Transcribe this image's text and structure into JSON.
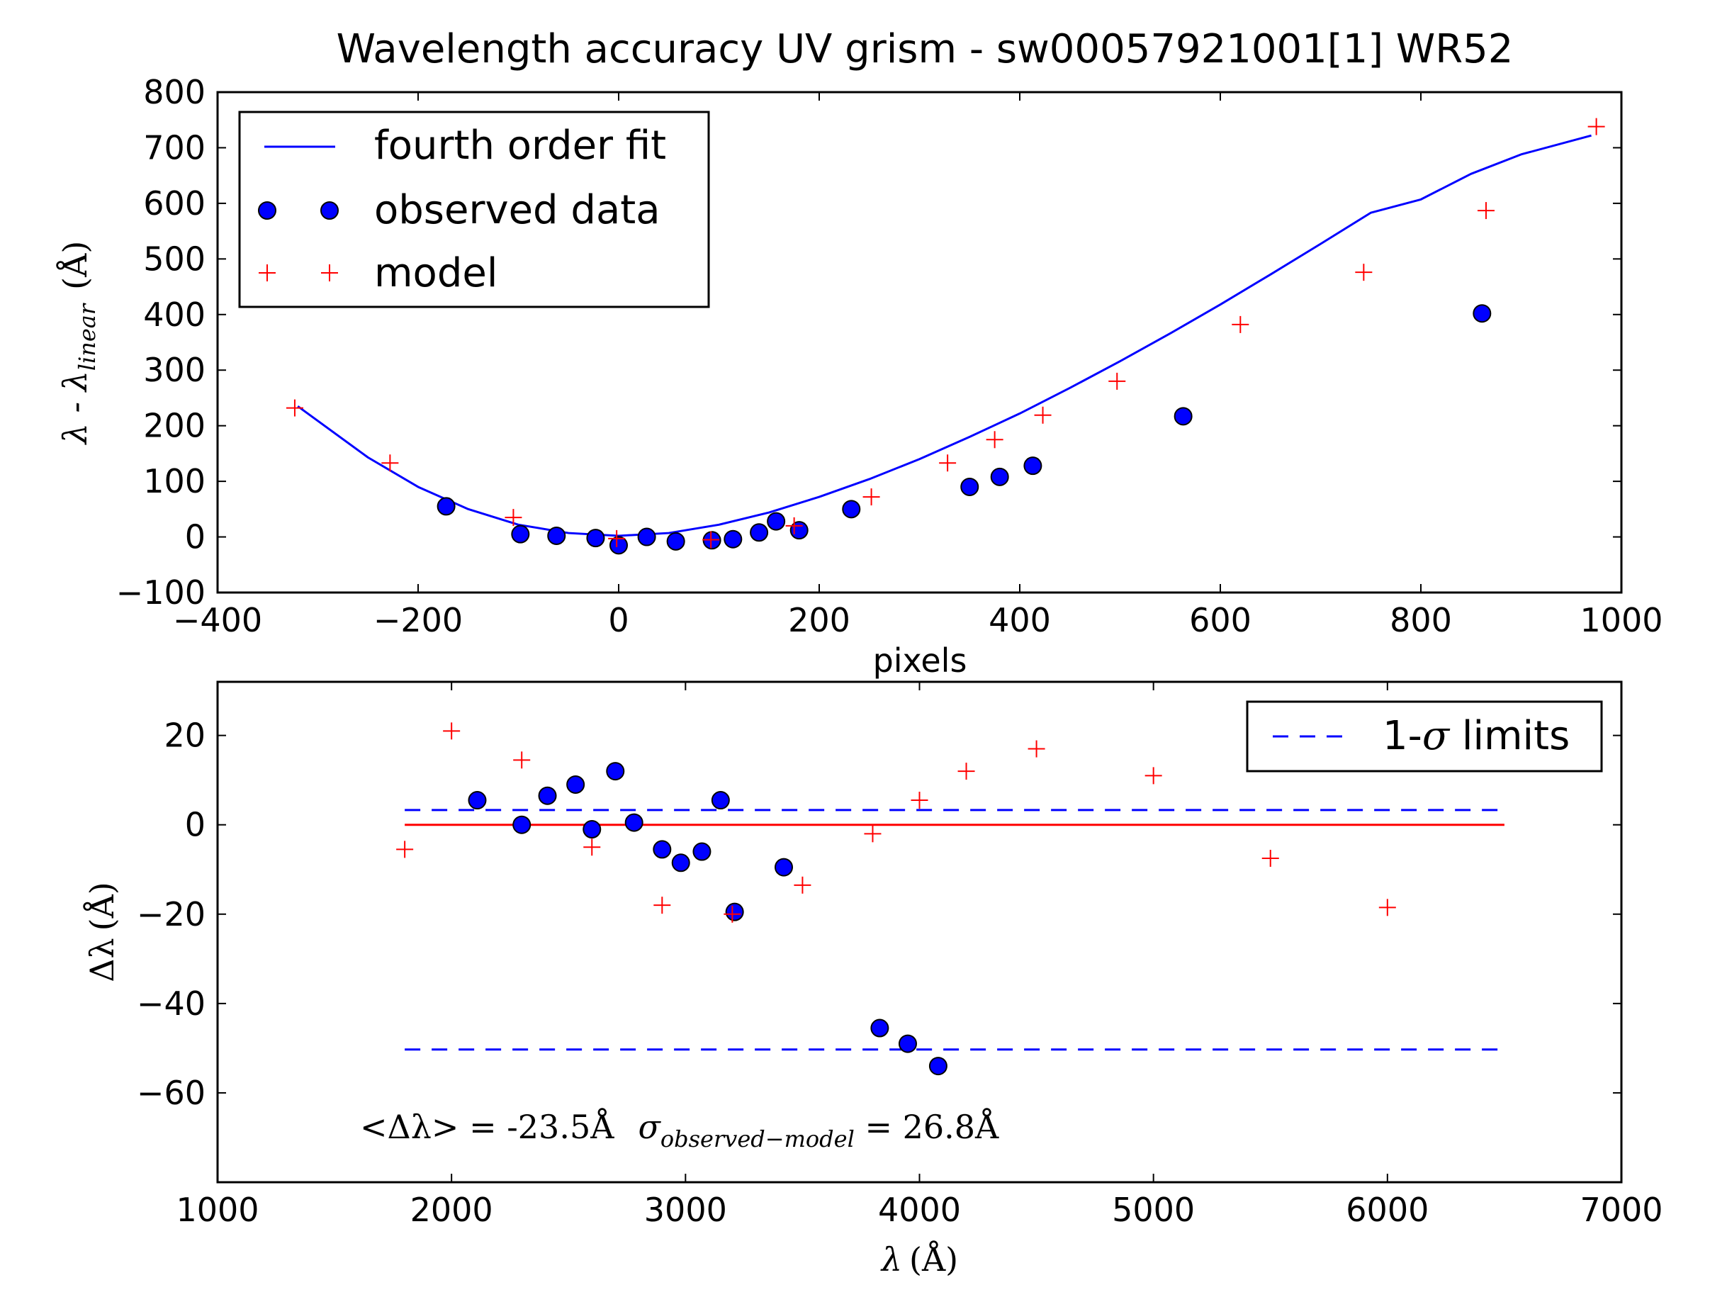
{
  "figure_title": "Wavelength accuracy UV grism - sw00057921001[1] WR52",
  "colors": {
    "fit": "#0000ff",
    "observed": "#0000ff",
    "model": "#ff0000",
    "limits": "#0000ff",
    "zero": "#ff0000"
  },
  "chart_data": [
    {
      "type": "scatter",
      "title": "Wavelength accuracy UV grism - sw00057921001[1] WR52",
      "xlabel": "pixels",
      "ylabel_main": "λ - λ",
      "ylabel_sub": "linear",
      "ylabel_unit": "(Å)",
      "xlim": [
        -400,
        1000
      ],
      "ylim": [
        -100,
        800
      ],
      "xticks": [
        -400,
        -200,
        0,
        200,
        400,
        600,
        800,
        1000
      ],
      "yticks": [
        -100,
        0,
        100,
        200,
        300,
        400,
        500,
        600,
        700,
        800
      ],
      "xtick_labels": [
        "−400",
        "−200",
        "0",
        "200",
        "400",
        "600",
        "800",
        "1000"
      ],
      "ytick_labels": [
        "−100",
        "0",
        "100",
        "200",
        "300",
        "400",
        "500",
        "600",
        "700",
        "800"
      ],
      "legend_placement": "upper-left",
      "legend": [
        {
          "label": "fourth order fit",
          "kind": "line"
        },
        {
          "label": "observed data",
          "kind": "circle"
        },
        {
          "label": "model",
          "kind": "plus"
        }
      ],
      "series": [
        {
          "name": "fourth order fit",
          "style": "line",
          "x": [
            -320,
            -250,
            -200,
            -150,
            -100,
            -50,
            0,
            50,
            100,
            150,
            200,
            250,
            300,
            350,
            400,
            450,
            500,
            550,
            600,
            650,
            700,
            750,
            800,
            850,
            900,
            970
          ],
          "y": [
            235,
            143,
            90,
            50,
            22,
            7,
            2,
            7,
            22,
            44,
            72,
            104,
            140,
            180,
            222,
            268,
            316,
            366,
            418,
            472,
            527,
            583,
            607,
            653,
            688,
            722
          ]
        },
        {
          "name": "observed data",
          "style": "circle",
          "x": [
            -172,
            -98,
            -62,
            -23,
            0,
            28,
            57,
            93,
            114,
            140,
            157,
            180,
            232,
            350,
            380,
            413,
            563,
            861
          ],
          "y": [
            55,
            5,
            2,
            -2,
            -15,
            0,
            -8,
            -6,
            -4,
            8,
            28,
            12,
            50,
            90,
            108,
            128,
            217,
            402
          ]
        },
        {
          "name": "model",
          "style": "plus",
          "x": [
            -323,
            -228,
            -105,
            -2,
            92,
            175,
            252,
            328,
            375,
            423,
            497,
            620,
            743,
            865,
            975
          ],
          "y": [
            232,
            133,
            35,
            -3,
            -5,
            20,
            72,
            133,
            175,
            219,
            280,
            382,
            476,
            587,
            738
          ]
        }
      ]
    },
    {
      "type": "scatter",
      "xlabel_main": "λ",
      "xlabel_unit": "(Å)",
      "ylabel_main": "Δλ",
      "ylabel_unit": "(Å)",
      "xlim": [
        1000,
        7000
      ],
      "ylim": [
        -80,
        32
      ],
      "xticks": [
        1000,
        2000,
        3000,
        4000,
        5000,
        6000,
        7000
      ],
      "yticks": [
        -60,
        -40,
        -20,
        0,
        20
      ],
      "xtick_labels": [
        "1000",
        "2000",
        "3000",
        "4000",
        "5000",
        "6000",
        "7000"
      ],
      "ytick_labels": [
        "−60",
        "−40",
        "−20",
        "0",
        "20"
      ],
      "legend_placement": "upper-right",
      "legend": [
        {
          "label_prefix": "1-",
          "label_symbol": "σ",
          "label_suffix": " limits",
          "kind": "dashed"
        }
      ],
      "annotation": {
        "prefix": "<Δλ> = -23.5Å",
        "sigma": "σ",
        "sub": "observed−model",
        "suffix": " = 26.8Å"
      },
      "series": [
        {
          "name": "observed data",
          "style": "circle",
          "x": [
            2110,
            2300,
            2410,
            2530,
            2600,
            2700,
            2780,
            2900,
            2980,
            3070,
            3150,
            3210,
            3420,
            3830,
            3950,
            4080
          ],
          "y": [
            5.5,
            0,
            6.5,
            9,
            -1,
            12,
            0.5,
            -5.5,
            -8.5,
            -6,
            5.5,
            -19.5,
            -9.5,
            -45.5,
            -49,
            -54
          ]
        },
        {
          "name": "model",
          "style": "plus",
          "x": [
            1800,
            2000,
            2300,
            2600,
            2900,
            3200,
            3500,
            3800,
            4000,
            4200,
            4500,
            5000,
            5500,
            6000
          ],
          "y": [
            -5.5,
            21,
            14.5,
            -5,
            -18,
            -20,
            -13.5,
            -2,
            5.5,
            12,
            17,
            11,
            -7.5,
            -18.5
          ]
        },
        {
          "name": "zero",
          "style": "solid-line",
          "x": [
            1800,
            6500
          ],
          "y": [
            0,
            0
          ]
        },
        {
          "name": "upper limit",
          "style": "dashed-line",
          "x": [
            1800,
            6500
          ],
          "y": [
            3.3,
            3.3
          ]
        },
        {
          "name": "lower limit",
          "style": "dashed-line",
          "x": [
            1800,
            6500
          ],
          "y": [
            -50.3,
            -50.3
          ]
        }
      ]
    }
  ]
}
